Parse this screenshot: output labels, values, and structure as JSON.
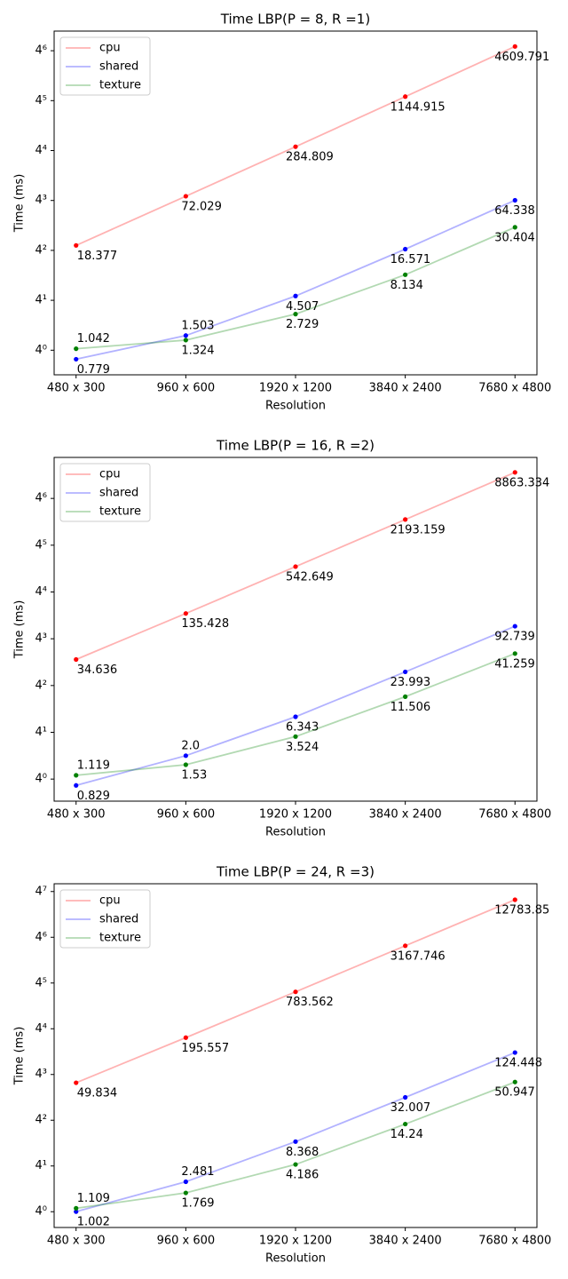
{
  "chart_data": [
    {
      "type": "line",
      "title": "Time LBP(P = 8, R =1)",
      "x_label": "Resolution",
      "y_label": "Time (ms)",
      "categories": [
        "480 x 300",
        "960 x 600",
        "1920 x 1200",
        "3840 x 2400",
        "7680 x 4800"
      ],
      "yscale": "log",
      "ylim": [
        0.505,
        7067
      ],
      "yticks": [
        {
          "value": 1,
          "label": "4⁰"
        },
        {
          "value": 4,
          "label": "4¹"
        },
        {
          "value": 16,
          "label": "4²"
        },
        {
          "value": 64,
          "label": "4³"
        },
        {
          "value": 256,
          "label": "4⁴"
        },
        {
          "value": 1024,
          "label": "4⁵"
        },
        {
          "value": 4096,
          "label": "4⁶"
        }
      ],
      "legend": "upper left",
      "series": [
        {
          "name": "cpu",
          "color": "red",
          "values": [
            18.377,
            72.029,
            284.809,
            1144.915,
            4609.791
          ]
        },
        {
          "name": "shared",
          "color": "blue",
          "values": [
            0.779,
            1.503,
            4.507,
            16.571,
            64.338
          ]
        },
        {
          "name": "texture",
          "color": "green",
          "values": [
            1.042,
            1.324,
            2.729,
            8.134,
            30.404
          ]
        }
      ]
    },
    {
      "type": "line",
      "title": "Time LBP(P = 16, R =2)",
      "x_label": "Resolution",
      "y_label": "Time (ms)",
      "categories": [
        "480 x 300",
        "960 x 600",
        "1920 x 1200",
        "3840 x 2400",
        "7680 x 4800"
      ],
      "yscale": "log",
      "ylim": [
        0.52,
        13808
      ],
      "yticks": [
        {
          "value": 1,
          "label": "4⁰"
        },
        {
          "value": 4,
          "label": "4¹"
        },
        {
          "value": 16,
          "label": "4²"
        },
        {
          "value": 64,
          "label": "4³"
        },
        {
          "value": 256,
          "label": "4⁴"
        },
        {
          "value": 1024,
          "label": "4⁵"
        },
        {
          "value": 4096,
          "label": "4⁶"
        }
      ],
      "legend": "upper left",
      "series": [
        {
          "name": "cpu",
          "color": "red",
          "values": [
            34.636,
            135.428,
            542.649,
            2193.159,
            8863.334
          ]
        },
        {
          "name": "shared",
          "color": "blue",
          "values": [
            0.829,
            2.0,
            6.343,
            23.993,
            92.739
          ],
          "value_labels": [
            "0.829",
            "2.0",
            "6.343",
            "23.993",
            "92.739"
          ]
        },
        {
          "name": "texture",
          "color": "green",
          "values": [
            1.119,
            1.53,
            3.524,
            11.506,
            41.259
          ]
        }
      ]
    },
    {
      "type": "line",
      "title": "Time LBP(P = 24, R =3)",
      "x_label": "Resolution",
      "y_label": "Time (ms)",
      "categories": [
        "480 x 300",
        "960 x 600",
        "1920 x 1200",
        "3840 x 2400",
        "7680 x 4800"
      ],
      "yscale": "log",
      "ylim": [
        0.62,
        20740
      ],
      "yticks": [
        {
          "value": 1,
          "label": "4⁰"
        },
        {
          "value": 4,
          "label": "4¹"
        },
        {
          "value": 16,
          "label": "4²"
        },
        {
          "value": 64,
          "label": "4³"
        },
        {
          "value": 256,
          "label": "4⁴"
        },
        {
          "value": 1024,
          "label": "4⁵"
        },
        {
          "value": 4096,
          "label": "4⁶"
        },
        {
          "value": 16384,
          "label": "4⁷"
        }
      ],
      "legend": "upper left",
      "series": [
        {
          "name": "cpu",
          "color": "red",
          "values": [
            49.834,
            195.557,
            783.562,
            3167.746,
            12783.85
          ]
        },
        {
          "name": "shared",
          "color": "blue",
          "values": [
            1.002,
            2.481,
            8.368,
            32.007,
            124.448
          ]
        },
        {
          "name": "texture",
          "color": "green",
          "values": [
            1.109,
            1.769,
            4.186,
            14.24,
            50.947
          ]
        }
      ]
    }
  ]
}
